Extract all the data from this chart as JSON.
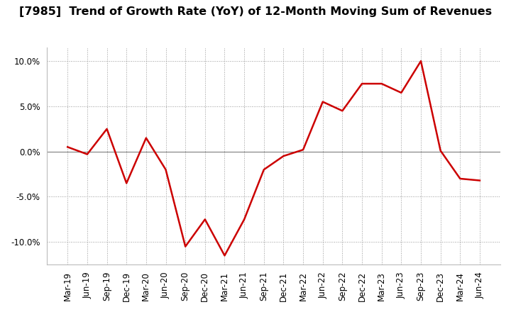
{
  "title": "[7985]  Trend of Growth Rate (YoY) of 12-Month Moving Sum of Revenues",
  "x_labels": [
    "Mar-19",
    "Jun-19",
    "Sep-19",
    "Dec-19",
    "Mar-20",
    "Jun-20",
    "Sep-20",
    "Dec-20",
    "Mar-21",
    "Jun-21",
    "Sep-21",
    "Dec-21",
    "Mar-22",
    "Jun-22",
    "Sep-22",
    "Dec-22",
    "Mar-23",
    "Jun-23",
    "Sep-23",
    "Dec-23",
    "Mar-24",
    "Jun-24"
  ],
  "y_values": [
    0.5,
    -0.3,
    2.5,
    -3.5,
    1.5,
    -2.0,
    -10.5,
    -7.5,
    -11.5,
    -7.5,
    -2.0,
    -0.5,
    0.2,
    5.5,
    4.5,
    7.5,
    7.5,
    6.5,
    10.0,
    0.1,
    -3.0,
    -3.2
  ],
  "line_color": "#cc0000",
  "line_width": 1.8,
  "background_color": "#ffffff",
  "plot_bg_color": "#ffffff",
  "grid_color": "#999999",
  "ylim": [
    -12.5,
    11.5
  ],
  "yticks": [
    -10.0,
    -5.0,
    0.0,
    5.0,
    10.0
  ],
  "zero_line_color": "#888888",
  "title_fontsize": 11.5,
  "tick_fontsize": 8.5
}
